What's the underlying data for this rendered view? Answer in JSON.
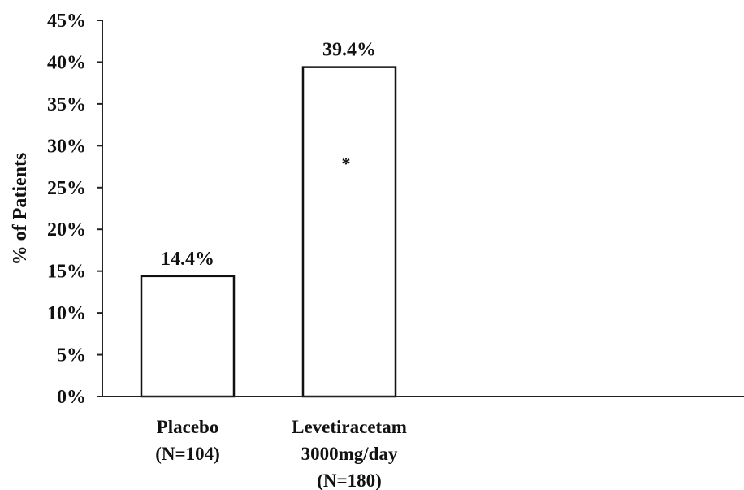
{
  "chart_data": {
    "type": "bar",
    "title": "",
    "xlabel": "",
    "ylabel": "% of Patients",
    "ylim": [
      0,
      45
    ],
    "yticks": [
      0,
      5,
      10,
      15,
      20,
      25,
      30,
      35,
      40,
      45
    ],
    "ytick_suffix": "%",
    "grid": false,
    "legend": "none",
    "categories": [
      [
        "Placebo",
        "(N=104)"
      ],
      [
        "Levetiracetam",
        "3000mg/day",
        "(N=180)"
      ]
    ],
    "series": [
      {
        "values": [
          14.4,
          39.4
        ],
        "data_labels": [
          "14.4%",
          "39.4%"
        ],
        "annotations": [
          "",
          "*"
        ],
        "color": "#ffffff",
        "edge_color": "#111111"
      }
    ]
  }
}
